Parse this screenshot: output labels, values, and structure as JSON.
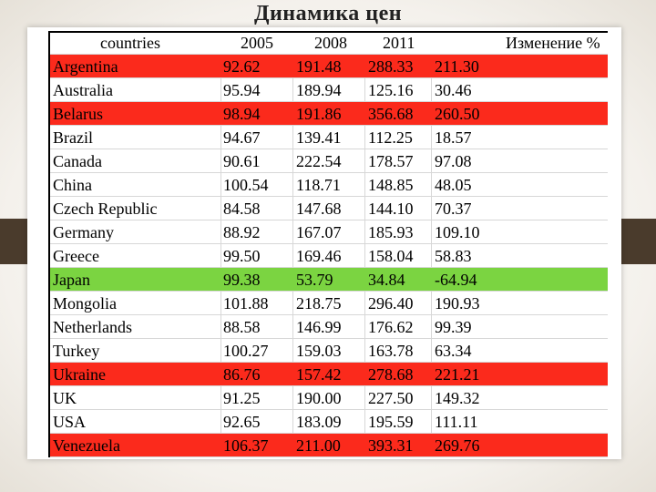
{
  "title": "Динамика цен",
  "headers": {
    "country": "countries",
    "y2005": "2005",
    "y2008": "2008",
    "y2011": "2011",
    "change": "Изменение %"
  },
  "colors": {
    "red": "#fb2a1c",
    "green": "#7bd441"
  },
  "rows": [
    {
      "country": "Argentina",
      "y2005": "92.62",
      "y2008": "191.48",
      "y2011": "288.33",
      "change": "211.30",
      "highlight": "red"
    },
    {
      "country": "Australia",
      "y2005": "95.94",
      "y2008": "189.94",
      "y2011": "125.16",
      "change": "30.46",
      "highlight": ""
    },
    {
      "country": "Belarus",
      "y2005": "98.94",
      "y2008": "191.86",
      "y2011": "356.68",
      "change": "260.50",
      "highlight": "red"
    },
    {
      "country": "Brazil",
      "y2005": "94.67",
      "y2008": "139.41",
      "y2011": "112.25",
      "change": "18.57",
      "highlight": ""
    },
    {
      "country": "Canada",
      "y2005": "90.61",
      "y2008": "222.54",
      "y2011": "178.57",
      "change": "97.08",
      "highlight": ""
    },
    {
      "country": "China",
      "y2005": "100.54",
      "y2008": "118.71",
      "y2011": "148.85",
      "change": "48.05",
      "highlight": ""
    },
    {
      "country": "Czech Republic",
      "y2005": "84.58",
      "y2008": "147.68",
      "y2011": "144.10",
      "change": "70.37",
      "highlight": ""
    },
    {
      "country": "Germany",
      "y2005": "88.92",
      "y2008": "167.07",
      "y2011": "185.93",
      "change": "109.10",
      "highlight": ""
    },
    {
      "country": "Greece",
      "y2005": "99.50",
      "y2008": "169.46",
      "y2011": "158.04",
      "change": "58.83",
      "highlight": ""
    },
    {
      "country": "Japan",
      "y2005": "99.38",
      "y2008": "53.79",
      "y2011": "34.84",
      "change": "-64.94",
      "highlight": "green"
    },
    {
      "country": "Mongolia",
      "y2005": "101.88",
      "y2008": "218.75",
      "y2011": "296.40",
      "change": "190.93",
      "highlight": ""
    },
    {
      "country": "Netherlands",
      "y2005": "88.58",
      "y2008": "146.99",
      "y2011": "176.62",
      "change": "99.39",
      "highlight": ""
    },
    {
      "country": "Turkey",
      "y2005": "100.27",
      "y2008": "159.03",
      "y2011": "163.78",
      "change": "63.34",
      "highlight": ""
    },
    {
      "country": "Ukraine",
      "y2005": "86.76",
      "y2008": "157.42",
      "y2011": "278.68",
      "change": "221.21",
      "highlight": "red"
    },
    {
      "country": "UK",
      "y2005": "91.25",
      "y2008": "190.00",
      "y2011": "227.50",
      "change": "149.32",
      "highlight": ""
    },
    {
      "country": "USA",
      "y2005": "92.65",
      "y2008": "183.09",
      "y2011": "195.59",
      "change": "111.11",
      "highlight": ""
    },
    {
      "country": "Venezuela",
      "y2005": "106.37",
      "y2008": "211.00",
      "y2011": "393.31",
      "change": "269.76",
      "highlight": "red"
    }
  ]
}
